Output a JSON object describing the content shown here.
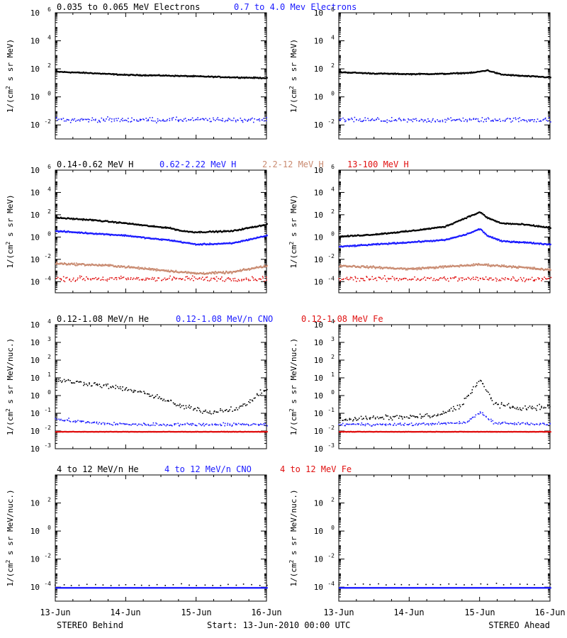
{
  "colors": {
    "black": "#000000",
    "blue": "#1a1aff",
    "tan": "#c98a70",
    "red": "#e01010"
  },
  "footer": {
    "left": "STEREO Behind",
    "center": "Start: 13-Jun-2010 00:00 UTC",
    "right": "STEREO Ahead"
  },
  "x_ticks": [
    "13-Jun",
    "14-Jun",
    "15-Jun",
    "16-Jun"
  ],
  "chart_data": [
    {
      "panel": "electrons-behind",
      "type": "scatter",
      "ylabel": "1/(cm2 s sr MeV)",
      "yscale": "log",
      "ylim_exp": [
        -3,
        6
      ],
      "tick_exps": [
        -2,
        0,
        2,
        4,
        6
      ],
      "xlim_days": [
        0,
        3
      ],
      "legend": [
        {
          "text": "0.035 to 0.065 MeV Electrons",
          "color": "#000000"
        },
        {
          "text": "0.7 to 4.0 Mev Electrons",
          "color": "#1a1aff"
        }
      ],
      "series": [
        {
          "name": "0.035 to 0.065 MeV Electrons",
          "color": "#000000",
          "style": "dense",
          "noise": 0.04,
          "x": [
            0,
            0.5,
            1,
            1.5,
            2,
            2.5,
            3
          ],
          "y": [
            1.85,
            1.75,
            1.62,
            1.58,
            1.52,
            1.45,
            1.4
          ]
        },
        {
          "name": "0.7 to 4.0 Mev Electrons",
          "color": "#1a1aff",
          "style": "scatter",
          "noise": 0.18,
          "x": [
            0,
            1,
            2,
            3
          ],
          "y": [
            -1.6,
            -1.6,
            -1.6,
            -1.6
          ]
        }
      ]
    },
    {
      "panel": "electrons-ahead",
      "type": "scatter",
      "ylabel": "1/(cm2 s sr MeV)",
      "yscale": "log",
      "ylim_exp": [
        -3,
        6
      ],
      "tick_exps": [
        -2,
        0,
        2,
        4,
        6
      ],
      "xlim_days": [
        0,
        3
      ],
      "legend": [],
      "series": [
        {
          "name": "0.035 to 0.065 MeV Electrons",
          "color": "#000000",
          "style": "dense",
          "noise": 0.04,
          "x": [
            0,
            0.5,
            1,
            1.5,
            1.9,
            2.1,
            2.3,
            2.6,
            3
          ],
          "y": [
            1.82,
            1.72,
            1.68,
            1.7,
            1.78,
            1.95,
            1.65,
            1.55,
            1.45
          ]
        },
        {
          "name": "0.7 to 4.0 Mev Electrons",
          "color": "#1a1aff",
          "style": "scatter",
          "noise": 0.18,
          "x": [
            0,
            1,
            2,
            3
          ],
          "y": [
            -1.6,
            -1.65,
            -1.6,
            -1.6
          ]
        }
      ]
    },
    {
      "panel": "protons-behind",
      "type": "scatter",
      "ylabel": "1/(cm2 s sr MeV)",
      "yscale": "log",
      "ylim_exp": [
        -5,
        6
      ],
      "tick_exps": [
        -4,
        -2,
        0,
        2,
        4,
        6
      ],
      "xlim_days": [
        0,
        3
      ],
      "legend": [
        {
          "text": "0.14-0.62 MeV H",
          "color": "#000000"
        },
        {
          "text": "0.62-2.22 MeV H",
          "color": "#1a1aff"
        },
        {
          "text": "2.2-12 MeV H",
          "color": "#c98a70"
        },
        {
          "text": "13-100 MeV H",
          "color": "#e01010"
        }
      ],
      "series": [
        {
          "name": "0.14-0.62 MeV H",
          "color": "#000000",
          "style": "dense",
          "noise": 0.06,
          "x": [
            0,
            0.5,
            1,
            1.4,
            1.6,
            1.8,
            2.0,
            2.5,
            3
          ],
          "y": [
            1.8,
            1.6,
            1.3,
            1.0,
            0.9,
            0.6,
            0.5,
            0.6,
            1.2
          ]
        },
        {
          "name": "0.62-2.22 MeV H",
          "color": "#1a1aff",
          "style": "dense",
          "noise": 0.06,
          "x": [
            0,
            0.5,
            1,
            1.4,
            1.6,
            1.8,
            2.0,
            2.5,
            3
          ],
          "y": [
            0.6,
            0.4,
            0.2,
            -0.1,
            -0.2,
            -0.4,
            -0.6,
            -0.5,
            0.2
          ]
        },
        {
          "name": "2.2-12 MeV H",
          "color": "#c98a70",
          "style": "dense",
          "noise": 0.1,
          "x": [
            0,
            0.8,
            1.5,
            2,
            2.5,
            3
          ],
          "y": [
            -2.3,
            -2.5,
            -2.9,
            -3.2,
            -3.1,
            -2.5
          ]
        },
        {
          "name": "13-100 MeV H",
          "color": "#e01010",
          "style": "scatter",
          "noise": 0.25,
          "x": [
            0,
            1,
            2,
            3
          ],
          "y": [
            -3.7,
            -3.7,
            -3.7,
            -3.7
          ]
        }
      ]
    },
    {
      "panel": "protons-ahead",
      "type": "scatter",
      "ylabel": "1/(cm2 s sr MeV)",
      "yscale": "log",
      "ylim_exp": [
        -5,
        6
      ],
      "tick_exps": [
        -4,
        -2,
        0,
        2,
        4,
        6
      ],
      "xlim_days": [
        0,
        3
      ],
      "legend": [],
      "series": [
        {
          "name": "0.14-0.62 MeV H",
          "color": "#000000",
          "style": "dense",
          "noise": 0.06,
          "x": [
            0,
            0.5,
            1,
            1.5,
            1.8,
            2.0,
            2.1,
            2.3,
            2.6,
            3
          ],
          "y": [
            0.1,
            0.3,
            0.6,
            1.0,
            1.8,
            2.3,
            1.8,
            1.3,
            1.2,
            0.9
          ]
        },
        {
          "name": "0.62-2.22 MeV H",
          "color": "#1a1aff",
          "style": "dense",
          "noise": 0.06,
          "x": [
            0,
            0.5,
            1,
            1.5,
            1.8,
            2.0,
            2.1,
            2.3,
            2.6,
            3
          ],
          "y": [
            -0.8,
            -0.6,
            -0.4,
            -0.2,
            0.3,
            0.8,
            0.2,
            -0.3,
            -0.4,
            -0.6
          ]
        },
        {
          "name": "2.2-12 MeV H",
          "color": "#c98a70",
          "style": "dense",
          "noise": 0.1,
          "x": [
            0,
            1,
            1.5,
            2,
            2.5,
            3
          ],
          "y": [
            -2.5,
            -2.8,
            -2.6,
            -2.4,
            -2.6,
            -2.9
          ]
        },
        {
          "name": "13-100 MeV H",
          "color": "#e01010",
          "style": "scatter",
          "noise": 0.25,
          "x": [
            0,
            1,
            2,
            3
          ],
          "y": [
            -3.7,
            -3.7,
            -3.7,
            -3.7
          ]
        }
      ]
    },
    {
      "panel": "heavy-low-behind",
      "type": "scatter",
      "ylabel": "1/(cm2 s sr MeV/nuc.)",
      "yscale": "log",
      "ylim_exp": [
        -3,
        4
      ],
      "tick_exps": [
        -3,
        -2,
        -1,
        0,
        1,
        2,
        3,
        4
      ],
      "xlim_days": [
        0,
        3
      ],
      "legend": [
        {
          "text": "0.12-1.08 MeV/n He",
          "color": "#000000"
        },
        {
          "text": "0.12-1.08 MeV/n CNO",
          "color": "#1a1aff"
        },
        {
          "text": "0.12-1.08 MeV Fe",
          "color": "#e01010"
        }
      ],
      "series": [
        {
          "name": "0.12-1.08 MeV/n He",
          "color": "#000000",
          "style": "scatter",
          "noise": 0.15,
          "x": [
            0,
            0.5,
            1,
            1.4,
            1.8,
            2.2,
            2.6,
            3
          ],
          "y": [
            0.9,
            0.7,
            0.4,
            0.0,
            -0.6,
            -0.9,
            -0.7,
            0.4
          ]
        },
        {
          "name": "0.12-1.08 MeV/n CNO",
          "color": "#1a1aff",
          "style": "scatter",
          "noise": 0.1,
          "x": [
            0,
            0.5,
            1,
            1.5,
            2,
            3
          ],
          "y": [
            -1.3,
            -1.5,
            -1.6,
            -1.6,
            -1.6,
            -1.6
          ]
        },
        {
          "name": "0.12-1.08 MeV Fe",
          "color": "#e01010",
          "style": "dense",
          "noise": 0.01,
          "x": [
            0,
            3
          ],
          "y": [
            -2.0,
            -2.0
          ]
        }
      ]
    },
    {
      "panel": "heavy-low-ahead",
      "type": "scatter",
      "ylabel": "1/(cm2 s sr MeV/nuc.)",
      "yscale": "log",
      "ylim_exp": [
        -3,
        4
      ],
      "tick_exps": [
        -3,
        -2,
        -1,
        0,
        1,
        2,
        3,
        4
      ],
      "xlim_days": [
        0,
        3
      ],
      "legend": [],
      "series": [
        {
          "name": "0.12-1.08 MeV/n He",
          "color": "#000000",
          "style": "scatter",
          "noise": 0.15,
          "x": [
            0,
            0.8,
            1.4,
            1.7,
            1.9,
            2.0,
            2.2,
            2.5,
            3
          ],
          "y": [
            -1.3,
            -1.2,
            -1.1,
            -0.6,
            0.4,
            0.9,
            -0.4,
            -0.7,
            -0.6
          ]
        },
        {
          "name": "0.12-1.08 MeV/n CNO",
          "color": "#1a1aff",
          "style": "scatter",
          "noise": 0.08,
          "x": [
            0,
            1,
            1.8,
            2.0,
            2.2,
            3
          ],
          "y": [
            -1.6,
            -1.6,
            -1.5,
            -0.9,
            -1.5,
            -1.6
          ]
        },
        {
          "name": "0.12-1.08 MeV Fe",
          "color": "#e01010",
          "style": "dense",
          "noise": 0.01,
          "x": [
            0,
            3
          ],
          "y": [
            -2.0,
            -2.0
          ]
        }
      ]
    },
    {
      "panel": "heavy-high-behind",
      "type": "scatter",
      "ylabel": "1/(cm2 s sr MeV/nuc.)",
      "yscale": "log",
      "ylim_exp": [
        -5,
        4
      ],
      "tick_exps": [
        -4,
        -2,
        0,
        2
      ],
      "xlim_days": [
        0,
        3
      ],
      "legend": [
        {
          "text": "4 to 12 MeV/n He",
          "color": "#000000"
        },
        {
          "text": "4 to 12 MeV/n CNO",
          "color": "#1a1aff"
        },
        {
          "text": "4 to 12 MeV Fe",
          "color": "#e01010"
        }
      ],
      "series": [
        {
          "name": "4 to 12 MeV/n He",
          "color": "#000000",
          "style": "sparse",
          "noise": 0.12,
          "x": [
            0,
            3
          ],
          "y": [
            -3.85,
            -3.85
          ]
        },
        {
          "name": "4 to 12 MeV/n CNO",
          "color": "#1a1aff",
          "style": "dense",
          "noise": 0.0,
          "x": [
            0,
            3
          ],
          "y": [
            -4.0,
            -4.0
          ]
        }
      ]
    },
    {
      "panel": "heavy-high-ahead",
      "type": "scatter",
      "ylabel": "1/(cm2 s sr MeV/nuc.)",
      "yscale": "log",
      "ylim_exp": [
        -5,
        4
      ],
      "tick_exps": [
        -4,
        -2,
        0,
        2
      ],
      "xlim_days": [
        0,
        3
      ],
      "legend": [],
      "series": [
        {
          "name": "4 to 12 MeV/n He",
          "color": "#000000",
          "style": "sparse",
          "noise": 0.12,
          "x": [
            0,
            3
          ],
          "y": [
            -3.8,
            -3.8
          ]
        },
        {
          "name": "4 to 12 MeV/n CNO",
          "color": "#1a1aff",
          "style": "dense",
          "noise": 0.0,
          "x": [
            0,
            3
          ],
          "y": [
            -4.0,
            -4.0
          ]
        }
      ]
    }
  ]
}
